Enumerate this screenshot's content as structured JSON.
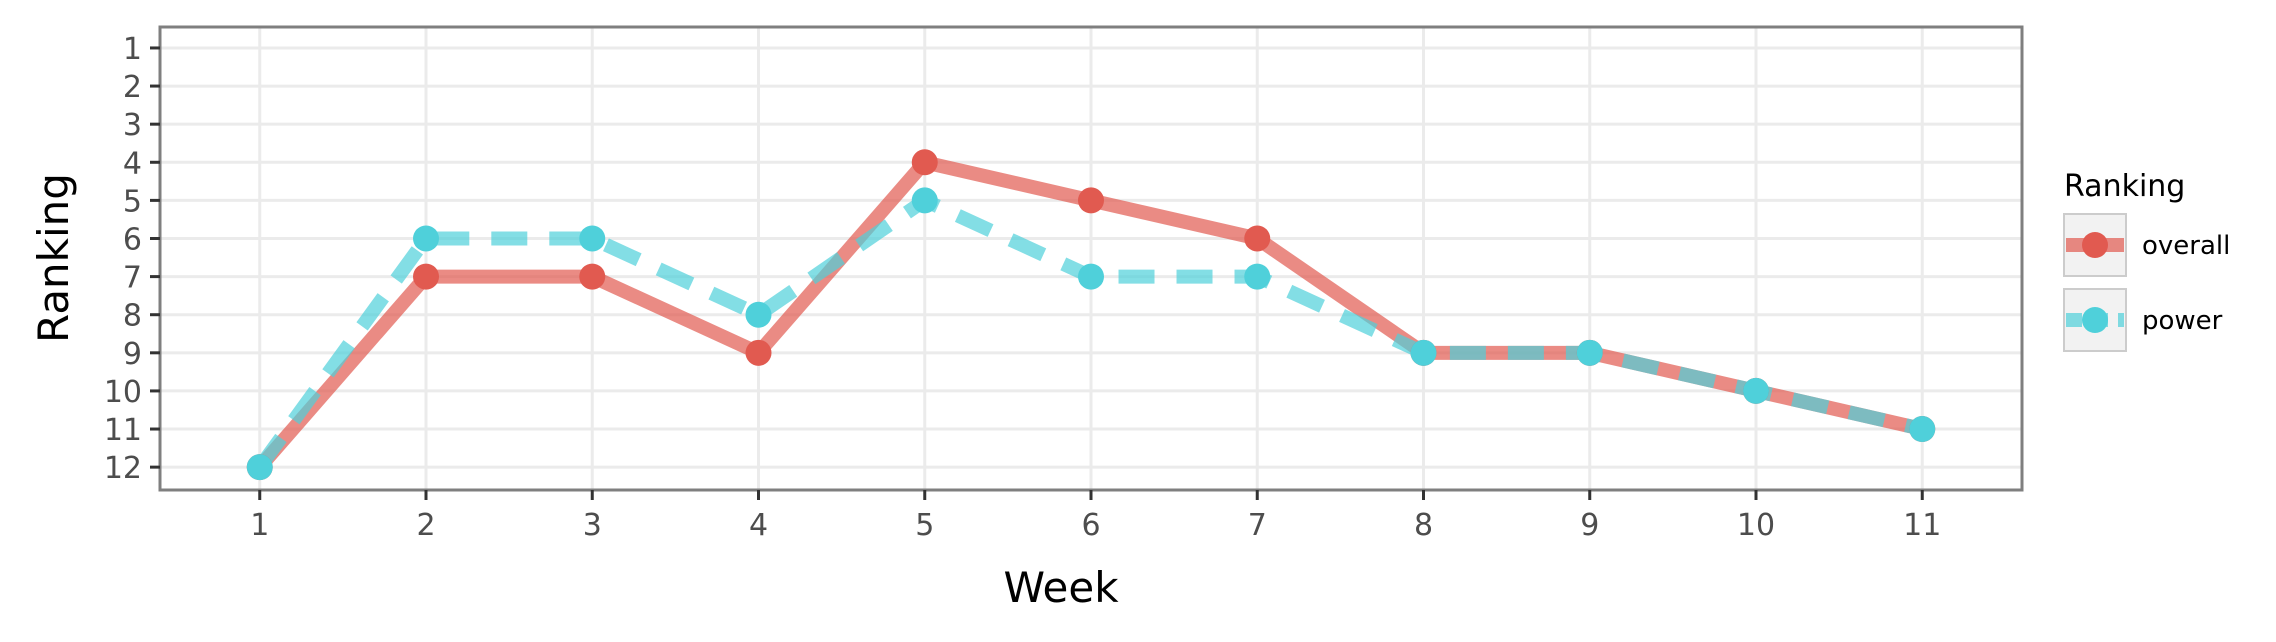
{
  "chart_data": {
    "type": "line",
    "xlabel": "Week",
    "ylabel": "Ranking",
    "x": [
      1,
      2,
      3,
      4,
      5,
      6,
      7,
      8,
      9,
      10,
      11
    ],
    "xlim": [
      0.4,
      11.6
    ],
    "ylim": [
      12.6,
      0.45
    ],
    "y_reversed": true,
    "y_ticks": [
      1,
      2,
      3,
      4,
      5,
      6,
      7,
      8,
      9,
      10,
      11,
      12
    ],
    "grid": true,
    "legend": {
      "title": "Ranking",
      "position": "right"
    },
    "series": [
      {
        "name": "overall",
        "color": "#E15A50",
        "line_style": "solid",
        "values": [
          12,
          7,
          7,
          9,
          4,
          5,
          6,
          9,
          9,
          10,
          11
        ]
      },
      {
        "name": "power",
        "color": "#4FD0DA",
        "line_style": "dashed",
        "values": [
          12,
          6,
          6,
          8,
          5,
          7,
          7,
          9,
          9,
          10,
          11
        ]
      }
    ]
  }
}
